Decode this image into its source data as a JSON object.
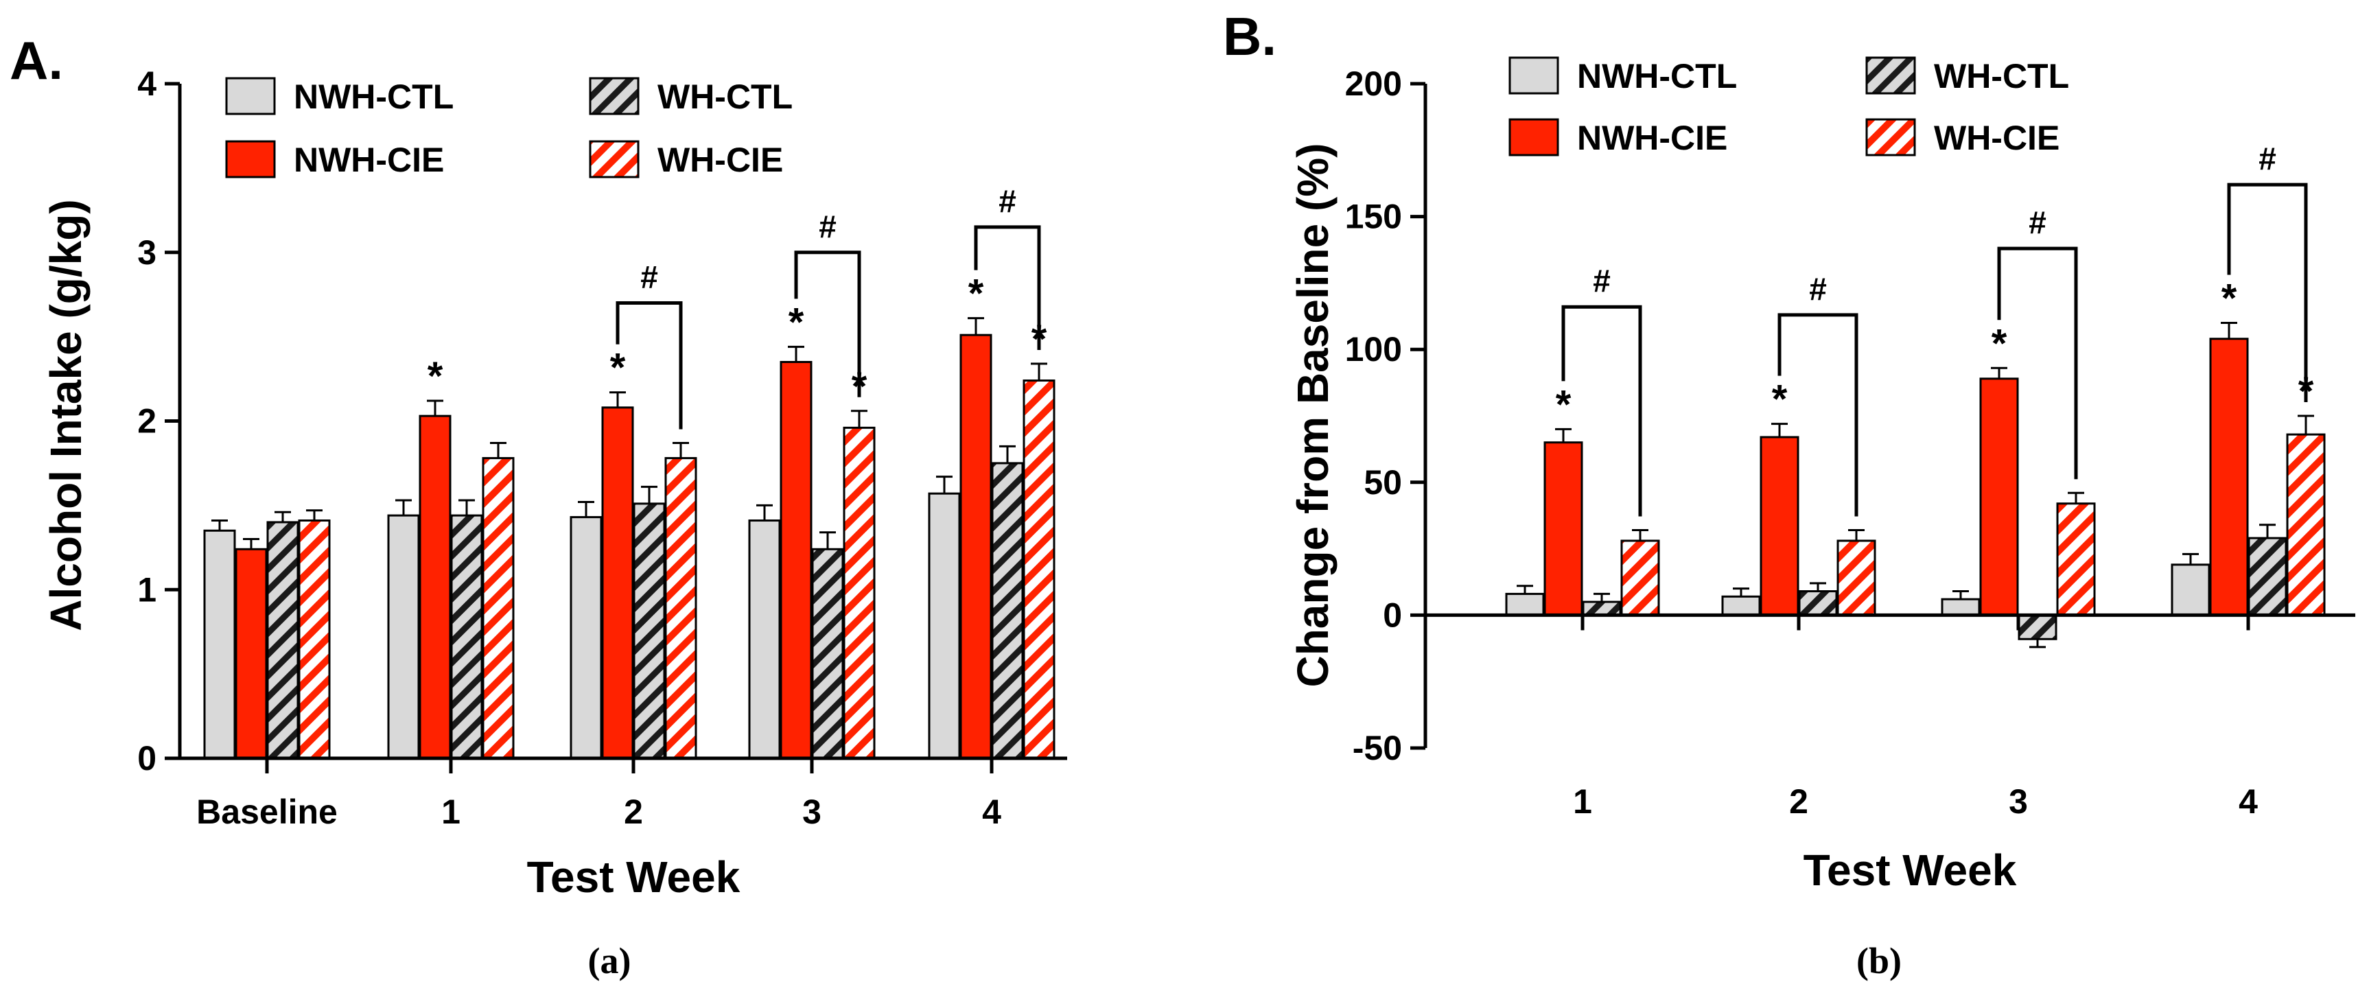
{
  "colors": {
    "ctl_fill": "#d9d9d9",
    "cie_fill": "#ff2200",
    "wh_ctl_stripe": "#1a1a1a",
    "wh_cie_stripe": "#ff2200",
    "axis": "#000000"
  },
  "chart_data": [
    {
      "type": "bar",
      "panel_label": "A.",
      "caption": "(a)",
      "xlabel": "Test Week",
      "ylabel": "Alcohol Intake (g/kg)",
      "ylim": [
        0,
        4
      ],
      "yticks": [
        0,
        1,
        2,
        3,
        4
      ],
      "categories": [
        "Baseline",
        "1",
        "2",
        "3",
        "4"
      ],
      "legend": [
        {
          "name": "NWH-CTL",
          "pattern": "solid-gray"
        },
        {
          "name": "WH-CTL",
          "pattern": "hatched-gray"
        },
        {
          "name": "NWH-CIE",
          "pattern": "solid-red"
        },
        {
          "name": "WH-CIE",
          "pattern": "hatched-red"
        }
      ],
      "series": [
        {
          "name": "NWH-CTL",
          "values": [
            1.35,
            1.44,
            1.43,
            1.41,
            1.57
          ],
          "errors": [
            0.06,
            0.09,
            0.09,
            0.09,
            0.1
          ]
        },
        {
          "name": "NWH-CIE",
          "values": [
            1.24,
            2.03,
            2.08,
            2.35,
            2.51
          ],
          "errors": [
            0.06,
            0.09,
            0.09,
            0.09,
            0.1
          ]
        },
        {
          "name": "WH-CTL",
          "values": [
            1.4,
            1.44,
            1.51,
            1.24,
            1.75
          ],
          "errors": [
            0.06,
            0.09,
            0.1,
            0.1,
            0.1
          ]
        },
        {
          "name": "WH-CIE",
          "values": [
            1.41,
            1.78,
            1.78,
            1.96,
            2.24
          ],
          "errors": [
            0.06,
            0.09,
            0.09,
            0.1,
            0.1
          ]
        }
      ],
      "star_symbol": "*",
      "stars": [
        {
          "category": 1,
          "series": 1
        },
        {
          "category": 2,
          "series": 1
        },
        {
          "category": 3,
          "series": 1
        },
        {
          "category": 3,
          "series": 3
        },
        {
          "category": 4,
          "series": 1
        },
        {
          "category": 4,
          "series": 3
        }
      ],
      "hash_symbol": "#",
      "brackets": [
        {
          "category": 2,
          "from": 1,
          "to": 3,
          "top": 2.7
        },
        {
          "category": 3,
          "from": 1,
          "to": 3,
          "top": 3.0
        },
        {
          "category": 4,
          "from": 1,
          "to": 3,
          "top": 3.15
        }
      ]
    },
    {
      "type": "bar",
      "panel_label": "B.",
      "caption": "(b)",
      "xlabel": "Test Week",
      "ylabel": "Change from Baseline (%)",
      "ylim": [
        -50,
        200
      ],
      "yticks": [
        -50,
        0,
        50,
        100,
        150,
        200
      ],
      "categories": [
        "1",
        "2",
        "3",
        "4"
      ],
      "legend": [
        {
          "name": "NWH-CTL",
          "pattern": "solid-gray"
        },
        {
          "name": "WH-CTL",
          "pattern": "hatched-gray"
        },
        {
          "name": "NWH-CIE",
          "pattern": "solid-red"
        },
        {
          "name": "WH-CIE",
          "pattern": "hatched-red"
        }
      ],
      "series": [
        {
          "name": "NWH-CTL",
          "values": [
            8,
            7,
            6,
            19
          ],
          "errors": [
            3,
            3,
            3,
            4
          ]
        },
        {
          "name": "NWH-CIE",
          "values": [
            65,
            67,
            89,
            104
          ],
          "errors": [
            5,
            5,
            4,
            6
          ]
        },
        {
          "name": "WH-CTL",
          "values": [
            5,
            9,
            -9,
            29
          ],
          "errors": [
            3,
            3,
            3,
            5
          ]
        },
        {
          "name": "WH-CIE",
          "values": [
            28,
            28,
            42,
            68
          ],
          "errors": [
            4,
            4,
            4,
            7
          ]
        }
      ],
      "star_symbol": "*",
      "stars": [
        {
          "category": 0,
          "series": 1
        },
        {
          "category": 1,
          "series": 1
        },
        {
          "category": 2,
          "series": 1
        },
        {
          "category": 3,
          "series": 1
        },
        {
          "category": 3,
          "series": 3
        }
      ],
      "hash_symbol": "#",
      "brackets": [
        {
          "category": 0,
          "from": 1,
          "to": 3,
          "top": 116
        },
        {
          "category": 1,
          "from": 1,
          "to": 3,
          "top": 113
        },
        {
          "category": 2,
          "from": 1,
          "to": 3,
          "top": 138
        },
        {
          "category": 3,
          "from": 1,
          "to": 3,
          "top": 162
        }
      ]
    }
  ]
}
